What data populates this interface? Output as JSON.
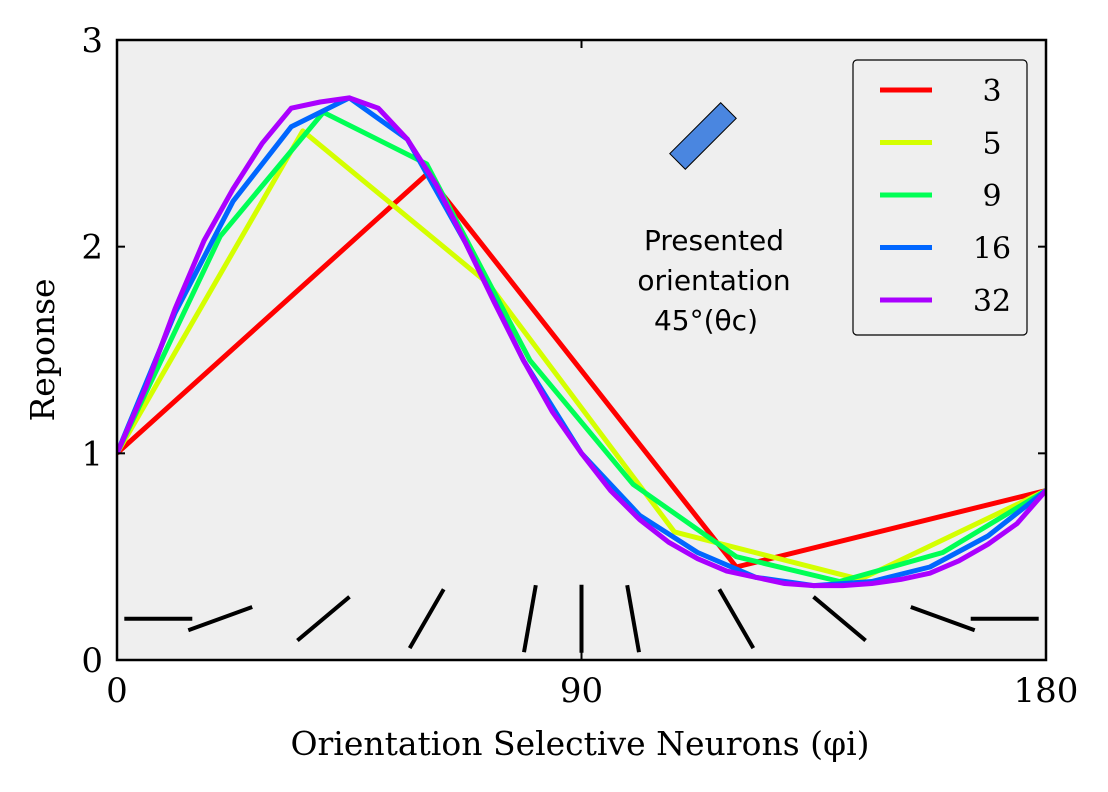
{
  "chart_data": {
    "type": "line",
    "title": "",
    "xlabel": "Orientation Selective Neurons (φi)",
    "ylabel": "Reponse",
    "xlim": [
      0,
      180
    ],
    "ylim": [
      0,
      3
    ],
    "xticks": [
      "0",
      "90",
      "180"
    ],
    "yticks": [
      "0",
      "1",
      "2",
      "3"
    ],
    "grid": false,
    "legend_position": "top-right",
    "background_color": "#efefef",
    "series": [
      {
        "name": "3",
        "color": "#ff0000",
        "x": [
          0,
          60,
          120,
          180
        ],
        "y": [
          1.0,
          2.35,
          0.45,
          0.82
        ]
      },
      {
        "name": "5",
        "color": "#d4ff00",
        "x": [
          0,
          36,
          72,
          108,
          144,
          180
        ],
        "y": [
          1.0,
          2.56,
          1.82,
          0.62,
          0.39,
          0.82
        ]
      },
      {
        "name": "9",
        "color": "#00ff55",
        "x": [
          0,
          20,
          40,
          60,
          80,
          100,
          120,
          140,
          160,
          180
        ],
        "y": [
          1.0,
          2.05,
          2.65,
          2.4,
          1.45,
          0.85,
          0.5,
          0.38,
          0.52,
          0.82
        ]
      },
      {
        "name": "16",
        "color": "#0066ff",
        "x": [
          0,
          11.25,
          22.5,
          33.75,
          45,
          56.25,
          67.5,
          78.75,
          90,
          101.25,
          112.5,
          123.75,
          135,
          146.25,
          157.5,
          168.75,
          180
        ],
        "y": [
          1.0,
          1.68,
          2.22,
          2.58,
          2.72,
          2.52,
          2.02,
          1.45,
          1.0,
          0.7,
          0.52,
          0.4,
          0.36,
          0.38,
          0.45,
          0.6,
          0.82
        ]
      },
      {
        "name": "32",
        "color": "#aa00ff",
        "x": [
          0,
          5.625,
          11.25,
          16.875,
          22.5,
          28.125,
          33.75,
          39.375,
          45,
          50.625,
          56.25,
          61.875,
          67.5,
          73.125,
          78.75,
          84.375,
          90,
          95.625,
          101.25,
          106.875,
          112.5,
          118.125,
          123.75,
          129.375,
          135,
          140.625,
          146.25,
          151.875,
          157.5,
          163.125,
          168.75,
          174.375,
          180
        ],
        "y": [
          1.0,
          1.32,
          1.7,
          2.03,
          2.28,
          2.5,
          2.67,
          2.7,
          2.72,
          2.67,
          2.52,
          2.3,
          2.02,
          1.73,
          1.45,
          1.2,
          1.0,
          0.82,
          0.68,
          0.57,
          0.49,
          0.43,
          0.4,
          0.37,
          0.36,
          0.36,
          0.37,
          0.39,
          0.42,
          0.48,
          0.56,
          0.66,
          0.82
        ]
      }
    ],
    "annotations": {
      "presented_line1": "Presented",
      "presented_line2": "orientation",
      "presented_line3": "45°(θc)",
      "presented_bar_color": "#4a86e0"
    },
    "orientation_markers_deg": [
      0,
      20,
      40,
      60,
      80,
      90,
      100,
      120,
      140,
      160,
      180
    ]
  }
}
